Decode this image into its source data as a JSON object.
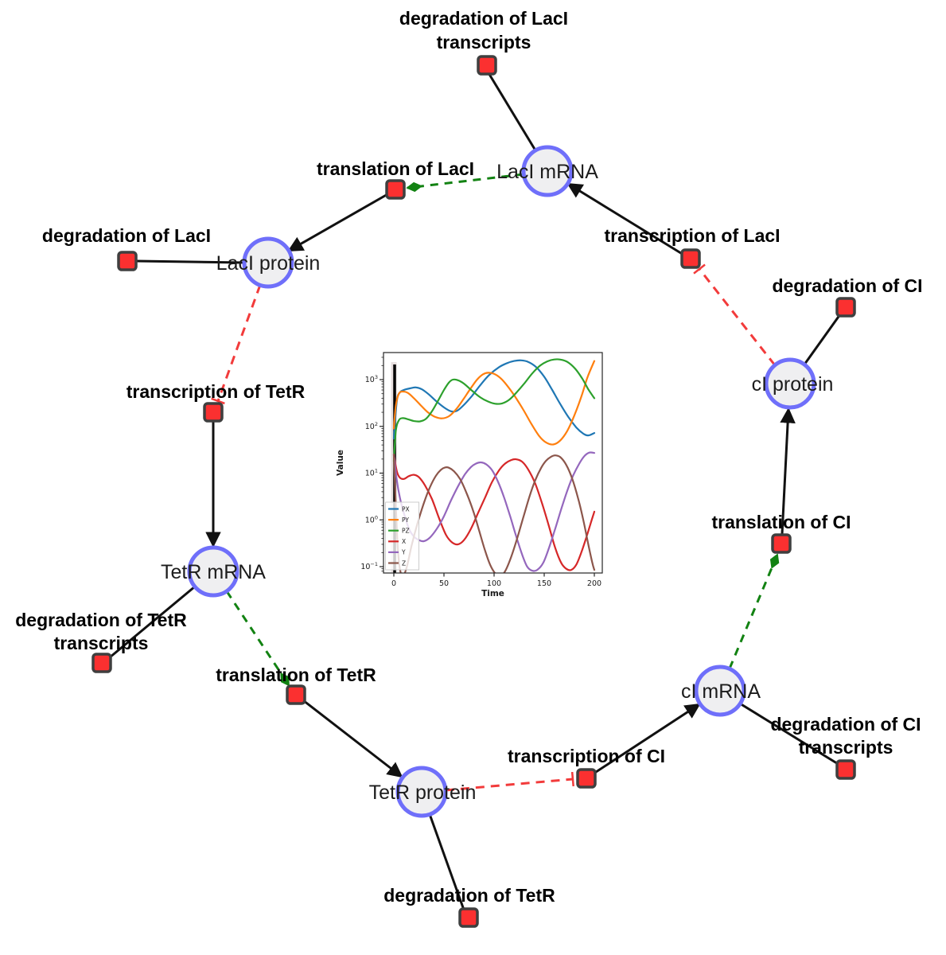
{
  "window": {
    "background": "#ffffff"
  },
  "network": {
    "colors": {
      "species_fill": "#efeff1",
      "species_border": "#6f6ffa",
      "reaction_fill": "#fb3030",
      "reaction_border": "#3f3f3f",
      "edge_black": "#111111",
      "activation_edge_green": "#128212",
      "inhibition_edge_red": "#f23b3b",
      "label_color": "#1c1c1c"
    },
    "species": [
      {
        "label": "LacI mRNA"
      },
      {
        "label": "LacI protein"
      },
      {
        "label": "TetR mRNA"
      },
      {
        "label": "TetR protein"
      },
      {
        "label": "cI mRNA"
      },
      {
        "label": "cI protein"
      }
    ],
    "reactions": [
      {
        "lines": [
          "degradation of LacI",
          "transcripts"
        ]
      },
      {
        "lines": [
          "translation of LacI"
        ]
      },
      {
        "lines": [
          "transcription of LacI"
        ]
      },
      {
        "lines": [
          "degradation of LacI"
        ]
      },
      {
        "lines": [
          "transcription of TetR"
        ]
      },
      {
        "lines": [
          "degradation of CI"
        ]
      },
      {
        "lines": [
          "translation of CI"
        ]
      },
      {
        "lines": [
          "degradation of TetR",
          "transcripts"
        ]
      },
      {
        "lines": [
          "translation of TetR"
        ]
      },
      {
        "lines": [
          "transcription of CI"
        ]
      },
      {
        "lines": [
          "degradation of CI",
          "transcripts"
        ]
      },
      {
        "lines": [
          "degradation of TetR"
        ]
      }
    ]
  },
  "chart_data": {
    "type": "line",
    "title": "",
    "xlabel": "Time",
    "ylabel": "Value",
    "x_ticks": [
      0,
      50,
      100,
      150,
      200
    ],
    "y_scale": "log",
    "y_ticks_exponents": [
      -1,
      0,
      1,
      2,
      3
    ],
    "xlim": [
      -10,
      208
    ],
    "ylim_log": [
      -1.14,
      3.58
    ],
    "legend_position": "lower left",
    "axvline_x": 0,
    "grid": false,
    "series": [
      {
        "name": "PX",
        "color": "#1f77b4",
        "points": [
          [
            0,
            55
          ],
          [
            3,
            350
          ],
          [
            6,
            530
          ],
          [
            10,
            600
          ],
          [
            16,
            650
          ],
          [
            22,
            680
          ],
          [
            28,
            620
          ],
          [
            35,
            480
          ],
          [
            42,
            350
          ],
          [
            50,
            255
          ],
          [
            57,
            210
          ],
          [
            63,
            215
          ],
          [
            70,
            290
          ],
          [
            78,
            450
          ],
          [
            86,
            750
          ],
          [
            95,
            1250
          ],
          [
            105,
            1850
          ],
          [
            113,
            2250
          ],
          [
            120,
            2500
          ],
          [
            127,
            2580
          ],
          [
            134,
            2400
          ],
          [
            142,
            1850
          ],
          [
            150,
            1150
          ],
          [
            158,
            600
          ],
          [
            166,
            300
          ],
          [
            174,
            160
          ],
          [
            182,
            95
          ],
          [
            189,
            70
          ],
          [
            194,
            64
          ],
          [
            200,
            72
          ]
        ]
      },
      {
        "name": "PY",
        "color": "#ff7f0e",
        "points": [
          [
            0,
            90
          ],
          [
            2,
            280
          ],
          [
            5,
            500
          ],
          [
            9,
            555
          ],
          [
            14,
            520
          ],
          [
            20,
            400
          ],
          [
            27,
            280
          ],
          [
            34,
            200
          ],
          [
            41,
            160
          ],
          [
            48,
            148
          ],
          [
            55,
            165
          ],
          [
            62,
            230
          ],
          [
            69,
            370
          ],
          [
            76,
            620
          ],
          [
            83,
            1000
          ],
          [
            89,
            1300
          ],
          [
            94,
            1400
          ],
          [
            100,
            1330
          ],
          [
            107,
            1050
          ],
          [
            114,
            700
          ],
          [
            121,
            430
          ],
          [
            129,
            230
          ],
          [
            137,
            115
          ],
          [
            145,
            62
          ],
          [
            152,
            45
          ],
          [
            159,
            41
          ],
          [
            166,
            50
          ],
          [
            173,
            80
          ],
          [
            180,
            170
          ],
          [
            187,
            430
          ],
          [
            193,
            1100
          ],
          [
            200,
            2500
          ]
        ]
      },
      {
        "name": "PZ",
        "color": "#2ca02c",
        "points": [
          [
            0,
            18
          ],
          [
            2,
            80
          ],
          [
            5,
            135
          ],
          [
            9,
            150
          ],
          [
            14,
            142
          ],
          [
            20,
            130
          ],
          [
            26,
            128
          ],
          [
            32,
            145
          ],
          [
            38,
            210
          ],
          [
            44,
            350
          ],
          [
            50,
            600
          ],
          [
            55,
            870
          ],
          [
            59,
            1000
          ],
          [
            64,
            970
          ],
          [
            70,
            820
          ],
          [
            78,
            580
          ],
          [
            86,
            420
          ],
          [
            94,
            340
          ],
          [
            101,
            305
          ],
          [
            108,
            310
          ],
          [
            115,
            370
          ],
          [
            122,
            520
          ],
          [
            130,
            820
          ],
          [
            138,
            1350
          ],
          [
            146,
            2000
          ],
          [
            153,
            2450
          ],
          [
            160,
            2700
          ],
          [
            166,
            2680
          ],
          [
            173,
            2400
          ],
          [
            181,
            1700
          ],
          [
            188,
            1050
          ],
          [
            194,
            620
          ],
          [
            200,
            400
          ]
        ]
      },
      {
        "name": "X",
        "color": "#d62728",
        "points": [
          [
            0,
            25
          ],
          [
            3,
            11
          ],
          [
            6,
            8
          ],
          [
            10,
            7.5
          ],
          [
            15,
            8.6
          ],
          [
            20,
            9.2
          ],
          [
            25,
            8.2
          ],
          [
            31,
            5.5
          ],
          [
            38,
            2.8
          ],
          [
            45,
            1.1
          ],
          [
            52,
            0.48
          ],
          [
            58,
            0.33
          ],
          [
            64,
            0.3
          ],
          [
            70,
            0.37
          ],
          [
            77,
            0.65
          ],
          [
            84,
            1.4
          ],
          [
            91,
            3
          ],
          [
            98,
            6.5
          ],
          [
            105,
            11.5
          ],
          [
            111,
            16
          ],
          [
            117,
            19
          ],
          [
            122,
            19.8
          ],
          [
            128,
            17.5
          ],
          [
            134,
            12
          ],
          [
            141,
            6
          ],
          [
            148,
            2.2
          ],
          [
            155,
            0.7
          ],
          [
            161,
            0.25
          ],
          [
            167,
            0.12
          ],
          [
            172,
            0.09
          ],
          [
            177,
            0.085
          ],
          [
            182,
            0.11
          ],
          [
            187,
            0.2
          ],
          [
            192,
            0.42
          ],
          [
            196,
            0.8
          ],
          [
            200,
            1.5
          ]
        ]
      },
      {
        "name": "Y",
        "color": "#9467bd",
        "points": [
          [
            0,
            25
          ],
          [
            3,
            7
          ],
          [
            6,
            3
          ],
          [
            10,
            1.4
          ],
          [
            15,
            0.65
          ],
          [
            20,
            0.44
          ],
          [
            25,
            0.37
          ],
          [
            30,
            0.35
          ],
          [
            36,
            0.42
          ],
          [
            43,
            0.65
          ],
          [
            50,
            1.2
          ],
          [
            57,
            2.6
          ],
          [
            64,
            5.2
          ],
          [
            71,
            9.5
          ],
          [
            77,
            13.5
          ],
          [
            82,
            16
          ],
          [
            87,
            17
          ],
          [
            92,
            15.5
          ],
          [
            98,
            11.5
          ],
          [
            104,
            6.5
          ],
          [
            110,
            3
          ],
          [
            116,
            1.2
          ],
          [
            122,
            0.45
          ],
          [
            128,
            0.18
          ],
          [
            133,
            0.1
          ],
          [
            138,
            0.082
          ],
          [
            143,
            0.085
          ],
          [
            149,
            0.12
          ],
          [
            155,
            0.26
          ],
          [
            161,
            0.65
          ],
          [
            167,
            1.7
          ],
          [
            173,
            4.2
          ],
          [
            179,
            9
          ],
          [
            185,
            16
          ],
          [
            190,
            23
          ],
          [
            195,
            27.5
          ],
          [
            200,
            27
          ]
        ]
      },
      {
        "name": "Z",
        "color": "#8c564b",
        "points": [
          [
            0,
            25
          ],
          [
            2,
            2
          ],
          [
            4,
            0.25
          ],
          [
            6,
            0.09
          ],
          [
            9,
            0.062
          ],
          [
            13,
            0.1
          ],
          [
            18,
            0.3
          ],
          [
            24,
            0.9
          ],
          [
            30,
            2.3
          ],
          [
            36,
            5
          ],
          [
            42,
            8.8
          ],
          [
            47,
            11.8
          ],
          [
            51,
            13.2
          ],
          [
            55,
            13
          ],
          [
            60,
            11
          ],
          [
            66,
            7.5
          ],
          [
            72,
            4
          ],
          [
            79,
            1.6
          ],
          [
            85,
            0.6
          ],
          [
            91,
            0.22
          ],
          [
            96,
            0.11
          ],
          [
            101,
            0.072
          ],
          [
            106,
            0.062
          ],
          [
            111,
            0.08
          ],
          [
            117,
            0.16
          ],
          [
            123,
            0.4
          ],
          [
            129,
            1.1
          ],
          [
            135,
            3
          ],
          [
            141,
            7
          ],
          [
            147,
            13
          ],
          [
            152,
            18.5
          ],
          [
            157,
            22.5
          ],
          [
            161,
            24
          ],
          [
            166,
            22
          ],
          [
            172,
            15
          ],
          [
            178,
            7.5
          ],
          [
            184,
            2.8
          ],
          [
            189,
            1
          ],
          [
            194,
            0.3
          ],
          [
            198,
            0.12
          ],
          [
            200,
            0.085
          ]
        ]
      }
    ]
  }
}
